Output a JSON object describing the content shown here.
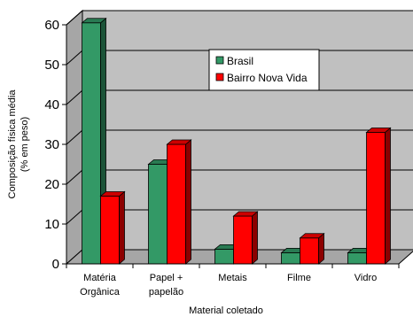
{
  "chart_data": {
    "type": "bar",
    "style": "3d-clustered-column",
    "categories": [
      [
        "Matéria",
        "Orgânica"
      ],
      [
        "Papel +",
        "papelão"
      ],
      [
        "Metais"
      ],
      [
        "Filme"
      ],
      [
        "Vidro"
      ]
    ],
    "series": [
      {
        "name": "Brasil",
        "color": "#339966",
        "values": [
          60.5,
          25,
          3.7,
          2.8,
          2.8
        ]
      },
      {
        "name": "Bairro Nova Vida",
        "color": "#ff0000",
        "values": [
          17,
          30,
          12,
          6.5,
          33
        ]
      }
    ],
    "ylabel": [
      "Composição física média",
      "(% em peso)"
    ],
    "xlabel": "Material coletado",
    "ylim": [
      0,
      60
    ],
    "yticks": [
      0,
      10,
      20,
      30,
      40,
      50,
      60
    ],
    "grid": true,
    "legend_position": "top-center",
    "plot_background": "#c0c0c0"
  }
}
